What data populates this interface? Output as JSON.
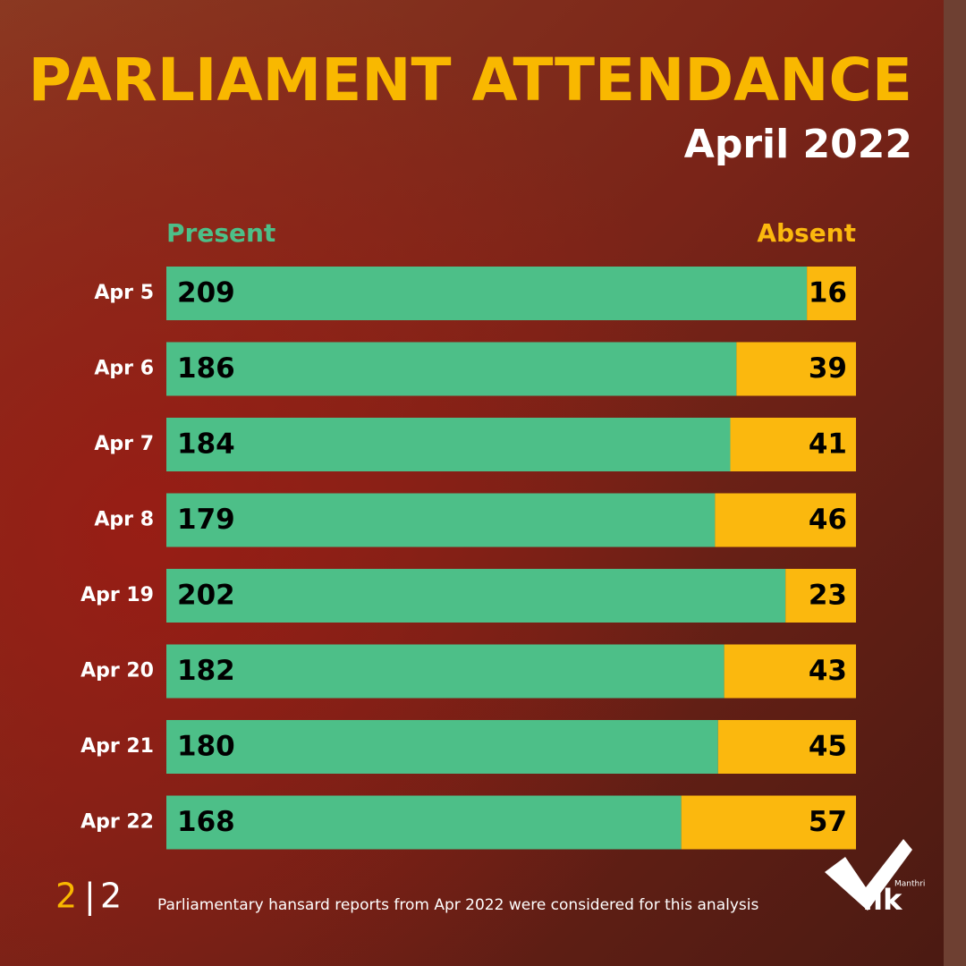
{
  "chart_data": {
    "type": "stacked-bar-horizontal",
    "title": "PARLIAMENT ATTENDANCE",
    "subtitle": "April 2022",
    "categories": [
      "Apr 5",
      "Apr 6",
      "Apr 7",
      "Apr 8",
      "Apr 19",
      "Apr 20",
      "Apr 21",
      "Apr 22"
    ],
    "series": [
      {
        "name": "Present",
        "color": "#4dbf88",
        "values": [
          209,
          186,
          184,
          179,
          202,
          182,
          180,
          168
        ]
      },
      {
        "name": "Absent",
        "color": "#fbb80e",
        "values": [
          16,
          39,
          41,
          46,
          23,
          43,
          45,
          57
        ]
      }
    ],
    "xlim": [
      0,
      225
    ]
  },
  "footer": {
    "page": "2",
    "separator": "|",
    "pages": "2",
    "source": "Parliamentary hansard reports from Apr 2022 were considered for this analysis",
    "logo_small": "Manthri",
    "logo_large": ".lk"
  }
}
